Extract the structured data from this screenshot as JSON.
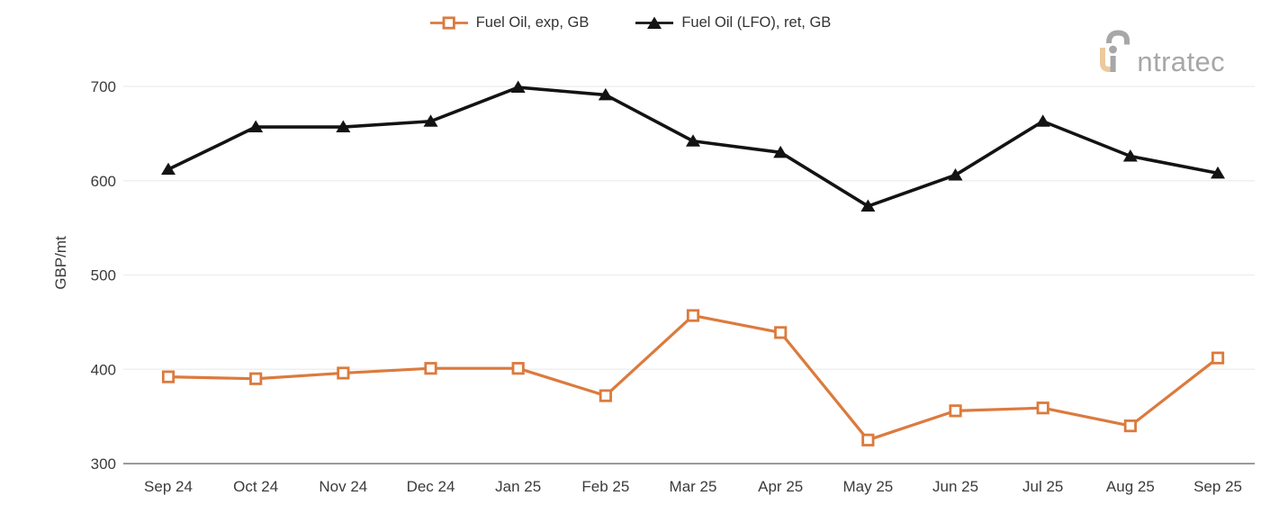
{
  "colors": {
    "background": "#ffffff",
    "grid": "#efefef",
    "axis": "#8c8c8c",
    "tick_text": "#3b3b3b",
    "accent_orange": "#dc7a3d",
    "series_black": "#131313",
    "logo_gray": "#a7a7a7",
    "logo_tan": "#ecca9e"
  },
  "logo": {
    "brand": "intratec",
    "text_after_mark": "ntratec"
  },
  "chart_data": {
    "type": "line",
    "title": "",
    "xlabel": "",
    "ylabel": "GBP/mt",
    "ylim": [
      300,
      700
    ],
    "yticks": [
      300,
      400,
      500,
      600,
      700
    ],
    "grid": "horizontal-light",
    "legend_position": "top-center",
    "categories": [
      "Sep 24",
      "Oct 24",
      "Nov 24",
      "Dec 24",
      "Jan 25",
      "Feb 25",
      "Mar 25",
      "Apr 25",
      "May 25",
      "Jun 25",
      "Jul 25",
      "Aug 25",
      "Sep 25"
    ],
    "series": [
      {
        "name": "Fuel Oil, exp, GB",
        "color": "#dc7a3d",
        "marker": "open-square",
        "values": [
          392,
          390,
          396,
          401,
          401,
          372,
          457,
          439,
          325,
          356,
          359,
          340,
          412
        ]
      },
      {
        "name": "Fuel Oil (LFO), ret, GB",
        "color": "#131313",
        "marker": "filled-triangle",
        "values": [
          612,
          657,
          657,
          663,
          699,
          691,
          642,
          630,
          573,
          606,
          663,
          626,
          608
        ]
      }
    ]
  }
}
